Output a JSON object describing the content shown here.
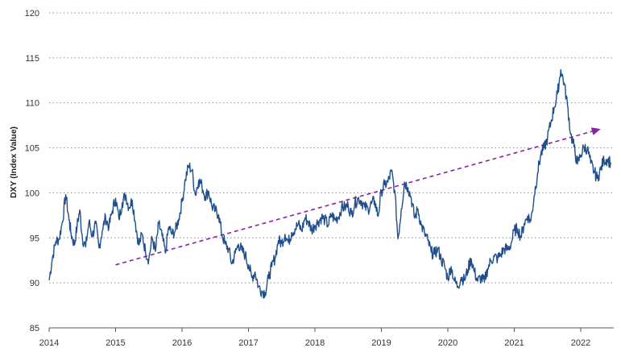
{
  "chart_data": {
    "type": "line",
    "title": "",
    "xlabel": "",
    "ylabel": "DXY (Index Value)",
    "ylim": [
      85,
      120
    ],
    "xlim": [
      2014,
      2022.5
    ],
    "y_ticks": [
      "85",
      "90",
      "95",
      "100",
      "105",
      "110",
      "115",
      "120"
    ],
    "x_ticks": [
      "2014",
      "2015",
      "2016",
      "2017",
      "2018",
      "2019",
      "2020",
      "2021",
      "2022"
    ],
    "grid": "horizontal dotted",
    "colors": {
      "series": "#1f4e8c",
      "trend": "#8e1fa8"
    },
    "series": [
      {
        "values_description_free": true,
        "x": [
          2014.0,
          2014.05,
          2014.1,
          2014.15,
          2014.2,
          2014.25,
          2014.3,
          2014.33,
          2014.38,
          2014.42,
          2014.46,
          2014.5,
          2014.55,
          2014.6,
          2014.65,
          2014.7,
          2014.75,
          2014.8,
          2014.85,
          2014.9,
          2014.95,
          2015.0,
          2015.05,
          2015.1,
          2015.15,
          2015.2,
          2015.25,
          2015.3,
          2015.35,
          2015.4,
          2015.45,
          2015.5,
          2015.55,
          2015.6,
          2015.65,
          2015.7,
          2015.75,
          2015.8,
          2015.85,
          2015.9,
          2015.95,
          2016.0,
          2016.05,
          2016.1,
          2016.15,
          2016.2,
          2016.25,
          2016.3,
          2016.35,
          2016.4,
          2016.45,
          2016.5,
          2016.55,
          2016.6,
          2016.65,
          2016.7,
          2016.75,
          2016.8,
          2016.85,
          2016.9,
          2016.95,
          2017.0,
          2017.05,
          2017.1,
          2017.15,
          2017.2,
          2017.25,
          2017.3,
          2017.35,
          2017.4,
          2017.45,
          2017.5,
          2017.55,
          2017.6,
          2017.65,
          2017.7,
          2017.75,
          2017.8,
          2017.85,
          2017.9,
          2017.95,
          2018.0,
          2018.05,
          2018.1,
          2018.15,
          2018.2,
          2018.25,
          2018.3,
          2018.35,
          2018.4,
          2018.45,
          2018.5,
          2018.55,
          2018.6,
          2018.65,
          2018.7,
          2018.75,
          2018.8,
          2018.85,
          2018.9,
          2018.95,
          2019.0,
          2019.05,
          2019.1,
          2019.15,
          2019.2,
          2019.25,
          2019.3,
          2019.35,
          2019.4,
          2019.45,
          2019.5,
          2019.55,
          2019.6,
          2019.65,
          2019.7,
          2019.75,
          2019.8,
          2019.85,
          2019.9,
          2019.95,
          2020.0,
          2020.05,
          2020.1,
          2020.15,
          2020.2,
          2020.25,
          2020.3,
          2020.35,
          2020.4,
          2020.45,
          2020.5,
          2020.55,
          2020.6,
          2020.65,
          2020.7,
          2020.75,
          2020.8,
          2020.85,
          2020.9,
          2020.95,
          2021.0,
          2021.05,
          2021.1,
          2021.15,
          2021.2,
          2021.25,
          2021.3,
          2021.35,
          2021.4,
          2021.45,
          2021.5,
          2021.55,
          2021.6,
          2021.65,
          2021.7,
          2021.75,
          2021.8,
          2021.85,
          2021.9,
          2021.95,
          2022.0,
          2022.05,
          2022.1,
          2022.15,
          2022.2,
          2022.25,
          2022.3,
          2022.35,
          2022.4,
          2022.45
        ],
        "y": [
          90.3,
          92.8,
          94.6,
          94.9,
          96.8,
          99.8,
          97.0,
          95.5,
          94.2,
          96.3,
          98.1,
          95.0,
          94.0,
          96.8,
          95.2,
          96.6,
          93.9,
          95.8,
          97.3,
          96.2,
          98.0,
          99.4,
          97.1,
          98.9,
          99.8,
          98.4,
          99.2,
          96.6,
          94.2,
          95.4,
          93.5,
          92.6,
          95.0,
          93.5,
          96.6,
          95.2,
          93.3,
          96.2,
          95.4,
          95.8,
          97.1,
          99.0,
          101.5,
          103.0,
          102.5,
          99.8,
          101.4,
          100.8,
          99.6,
          100.2,
          98.5,
          98.0,
          97.6,
          95.4,
          94.3,
          93.8,
          92.1,
          93.3,
          94.3,
          93.6,
          93.1,
          92.0,
          90.6,
          91.2,
          89.6,
          89.1,
          88.9,
          90.5,
          91.8,
          92.8,
          94.7,
          94.4,
          95.4,
          94.5,
          95.6,
          96.0,
          96.5,
          95.8,
          97.2,
          96.8,
          95.9,
          96.4,
          96.8,
          97.3,
          97.0,
          96.4,
          97.6,
          97.0,
          97.3,
          98.3,
          98.4,
          98.6,
          97.6,
          98.8,
          99.4,
          99.1,
          98.4,
          98.2,
          98.8,
          99.1,
          97.4,
          100.2,
          100.9,
          101.2,
          102.4,
          100.3,
          94.9,
          98.2,
          101.2,
          100.6,
          99.4,
          97.2,
          98.2,
          96.4,
          95.5,
          94.7,
          93.4,
          93.2,
          93.8,
          92.6,
          91.9,
          90.5,
          91.8,
          90.2,
          89.6,
          90.6,
          90.3,
          91.4,
          92.7,
          91.2,
          90.2,
          90.6,
          90.1,
          91.6,
          92.5,
          92.9,
          92.7,
          93.2,
          93.8,
          93.7,
          94.3,
          95.8,
          96.0,
          95.1,
          96.6,
          97.4,
          96.9,
          99.7,
          102.2,
          104.3,
          105.0,
          106.1,
          107.8,
          109.5,
          111.0,
          113.7,
          112.2,
          109.8,
          106.5,
          105.1,
          103.2,
          104.2,
          105.1,
          104.9,
          103.3,
          102.4,
          101.6,
          102.6,
          103.7,
          103.7,
          103.4
        ],
        "name": ""
      }
    ],
    "trend_line": {
      "x": [
        2015.0,
        2022.3
      ],
      "y": [
        92.0,
        107.1
      ]
    }
  }
}
